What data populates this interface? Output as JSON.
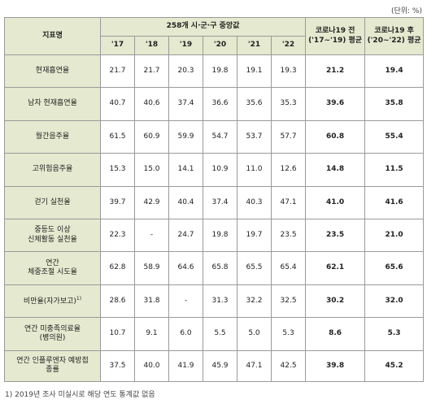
{
  "unit": "(단위: %)",
  "header": {
    "indicator": "지표명",
    "group": "258개 시·군·구 중앙값",
    "years": [
      "'17",
      "'18",
      "'19",
      "'20",
      "'21",
      "'22"
    ],
    "pre_avg": [
      "코로나19 전",
      "('17~'19) 평균"
    ],
    "post_avg": [
      "코로나19 후",
      "('20~'22) 평균"
    ]
  },
  "rows": [
    {
      "label": [
        "현재흡연율"
      ],
      "values": [
        "21.7",
        "21.7",
        "20.3",
        "19.8",
        "19.1",
        "19.3"
      ],
      "pre": "21.2",
      "post": "19.4"
    },
    {
      "label": [
        "남자 현재흡연율"
      ],
      "values": [
        "40.7",
        "40.6",
        "37.4",
        "36.6",
        "35.6",
        "35.3"
      ],
      "pre": "39.6",
      "post": "35.8"
    },
    {
      "label": [
        "월간음주율"
      ],
      "values": [
        "61.5",
        "60.9",
        "59.9",
        "54.7",
        "53.7",
        "57.7"
      ],
      "pre": "60.8",
      "post": "55.4"
    },
    {
      "label": [
        "고위험음주율"
      ],
      "values": [
        "15.3",
        "15.0",
        "14.1",
        "10.9",
        "11.0",
        "12.6"
      ],
      "pre": "14.8",
      "post": "11.5"
    },
    {
      "label": [
        "걷기 실천율"
      ],
      "values": [
        "39.7",
        "42.9",
        "40.4",
        "37.4",
        "40.3",
        "47.1"
      ],
      "pre": "41.0",
      "post": "41.6"
    },
    {
      "label": [
        "중등도 이상",
        "신체활동 실천율"
      ],
      "values": [
        "22.3",
        "-",
        "24.7",
        "19.8",
        "19.7",
        "23.5"
      ],
      "pre": "23.5",
      "post": "21.0"
    },
    {
      "label": [
        "연간",
        "체중조절 시도율"
      ],
      "values": [
        "62.8",
        "58.9",
        "64.6",
        "65.8",
        "65.5",
        "65.4"
      ],
      "pre": "62.1",
      "post": "65.6"
    },
    {
      "label": [
        "비만율(자가보고)"
      ],
      "sup": "1)",
      "values": [
        "28.6",
        "31.8",
        "-",
        "31.3",
        "32.2",
        "32.5"
      ],
      "pre": "30.2",
      "post": "32.0"
    },
    {
      "label": [
        "연간 미충족의료율",
        "(병의원)"
      ],
      "values": [
        "10.7",
        "9.1",
        "6.0",
        "5.5",
        "5.0",
        "5.3"
      ],
      "pre": "8.6",
      "post": "5.3"
    },
    {
      "label": [
        "연간 인플루엔자 예방접",
        "종률"
      ],
      "values": [
        "37.5",
        "40.0",
        "41.9",
        "45.9",
        "47.1",
        "42.5"
      ],
      "pre": "39.8",
      "post": "45.2"
    }
  ],
  "footnote": "1) 2019년 조사 미실시로 해당 연도 통계값 없음"
}
